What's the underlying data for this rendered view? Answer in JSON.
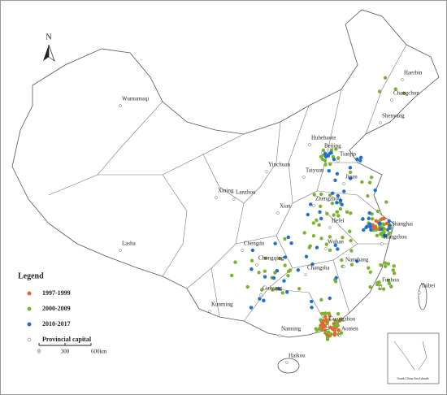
{
  "north_label": "N",
  "cities": [
    "Haerbin",
    "Changchun",
    "Shenyang",
    "Wumumuqi",
    "Huhehaote",
    "Beijing",
    "Tianjin",
    "Yinchuan",
    "Taiyuan",
    "Jinan",
    "Xining",
    "Lanzhou",
    "Zhengzhou",
    "Xian",
    "Hefei",
    "Shanghai",
    "Hangzhou",
    "Wuhan",
    "Lasha",
    "Chengdu",
    "Chongqing",
    "Nanchang",
    "Changsha",
    "Fuzhou",
    "Taibei",
    "Guiyang",
    "Kunming",
    "Guangzhou",
    "Nanning",
    "Aomen",
    "Haikou"
  ],
  "legend": {
    "title": "Legend",
    "items": [
      "1997-1999",
      "2000-2009",
      "2010-2017",
      "Provincial capital"
    ]
  },
  "scale_bar": {
    "labels": [
      "0",
      "300",
      "600km"
    ]
  },
  "inset_label": "South China Sea Islands"
}
